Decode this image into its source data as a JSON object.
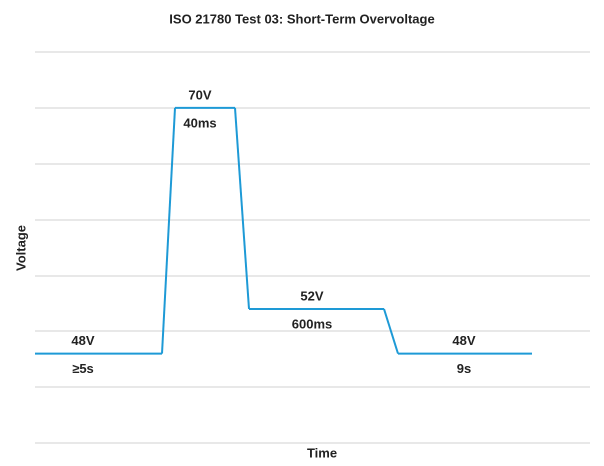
{
  "chart_data": {
    "type": "line",
    "title": "ISO 21780 Test 03: Short-Term Overvoltage",
    "xlabel": "Time",
    "ylabel": "Voltage",
    "categories": [
      "≥5s",
      "40ms",
      "600ms",
      "9s"
    ],
    "values": [
      48,
      70,
      52,
      48
    ],
    "value_labels": [
      "48V",
      "70V",
      "52V",
      "48V"
    ],
    "color": "#1e9ad6",
    "ylim": [
      40,
      75
    ],
    "grid": true
  }
}
